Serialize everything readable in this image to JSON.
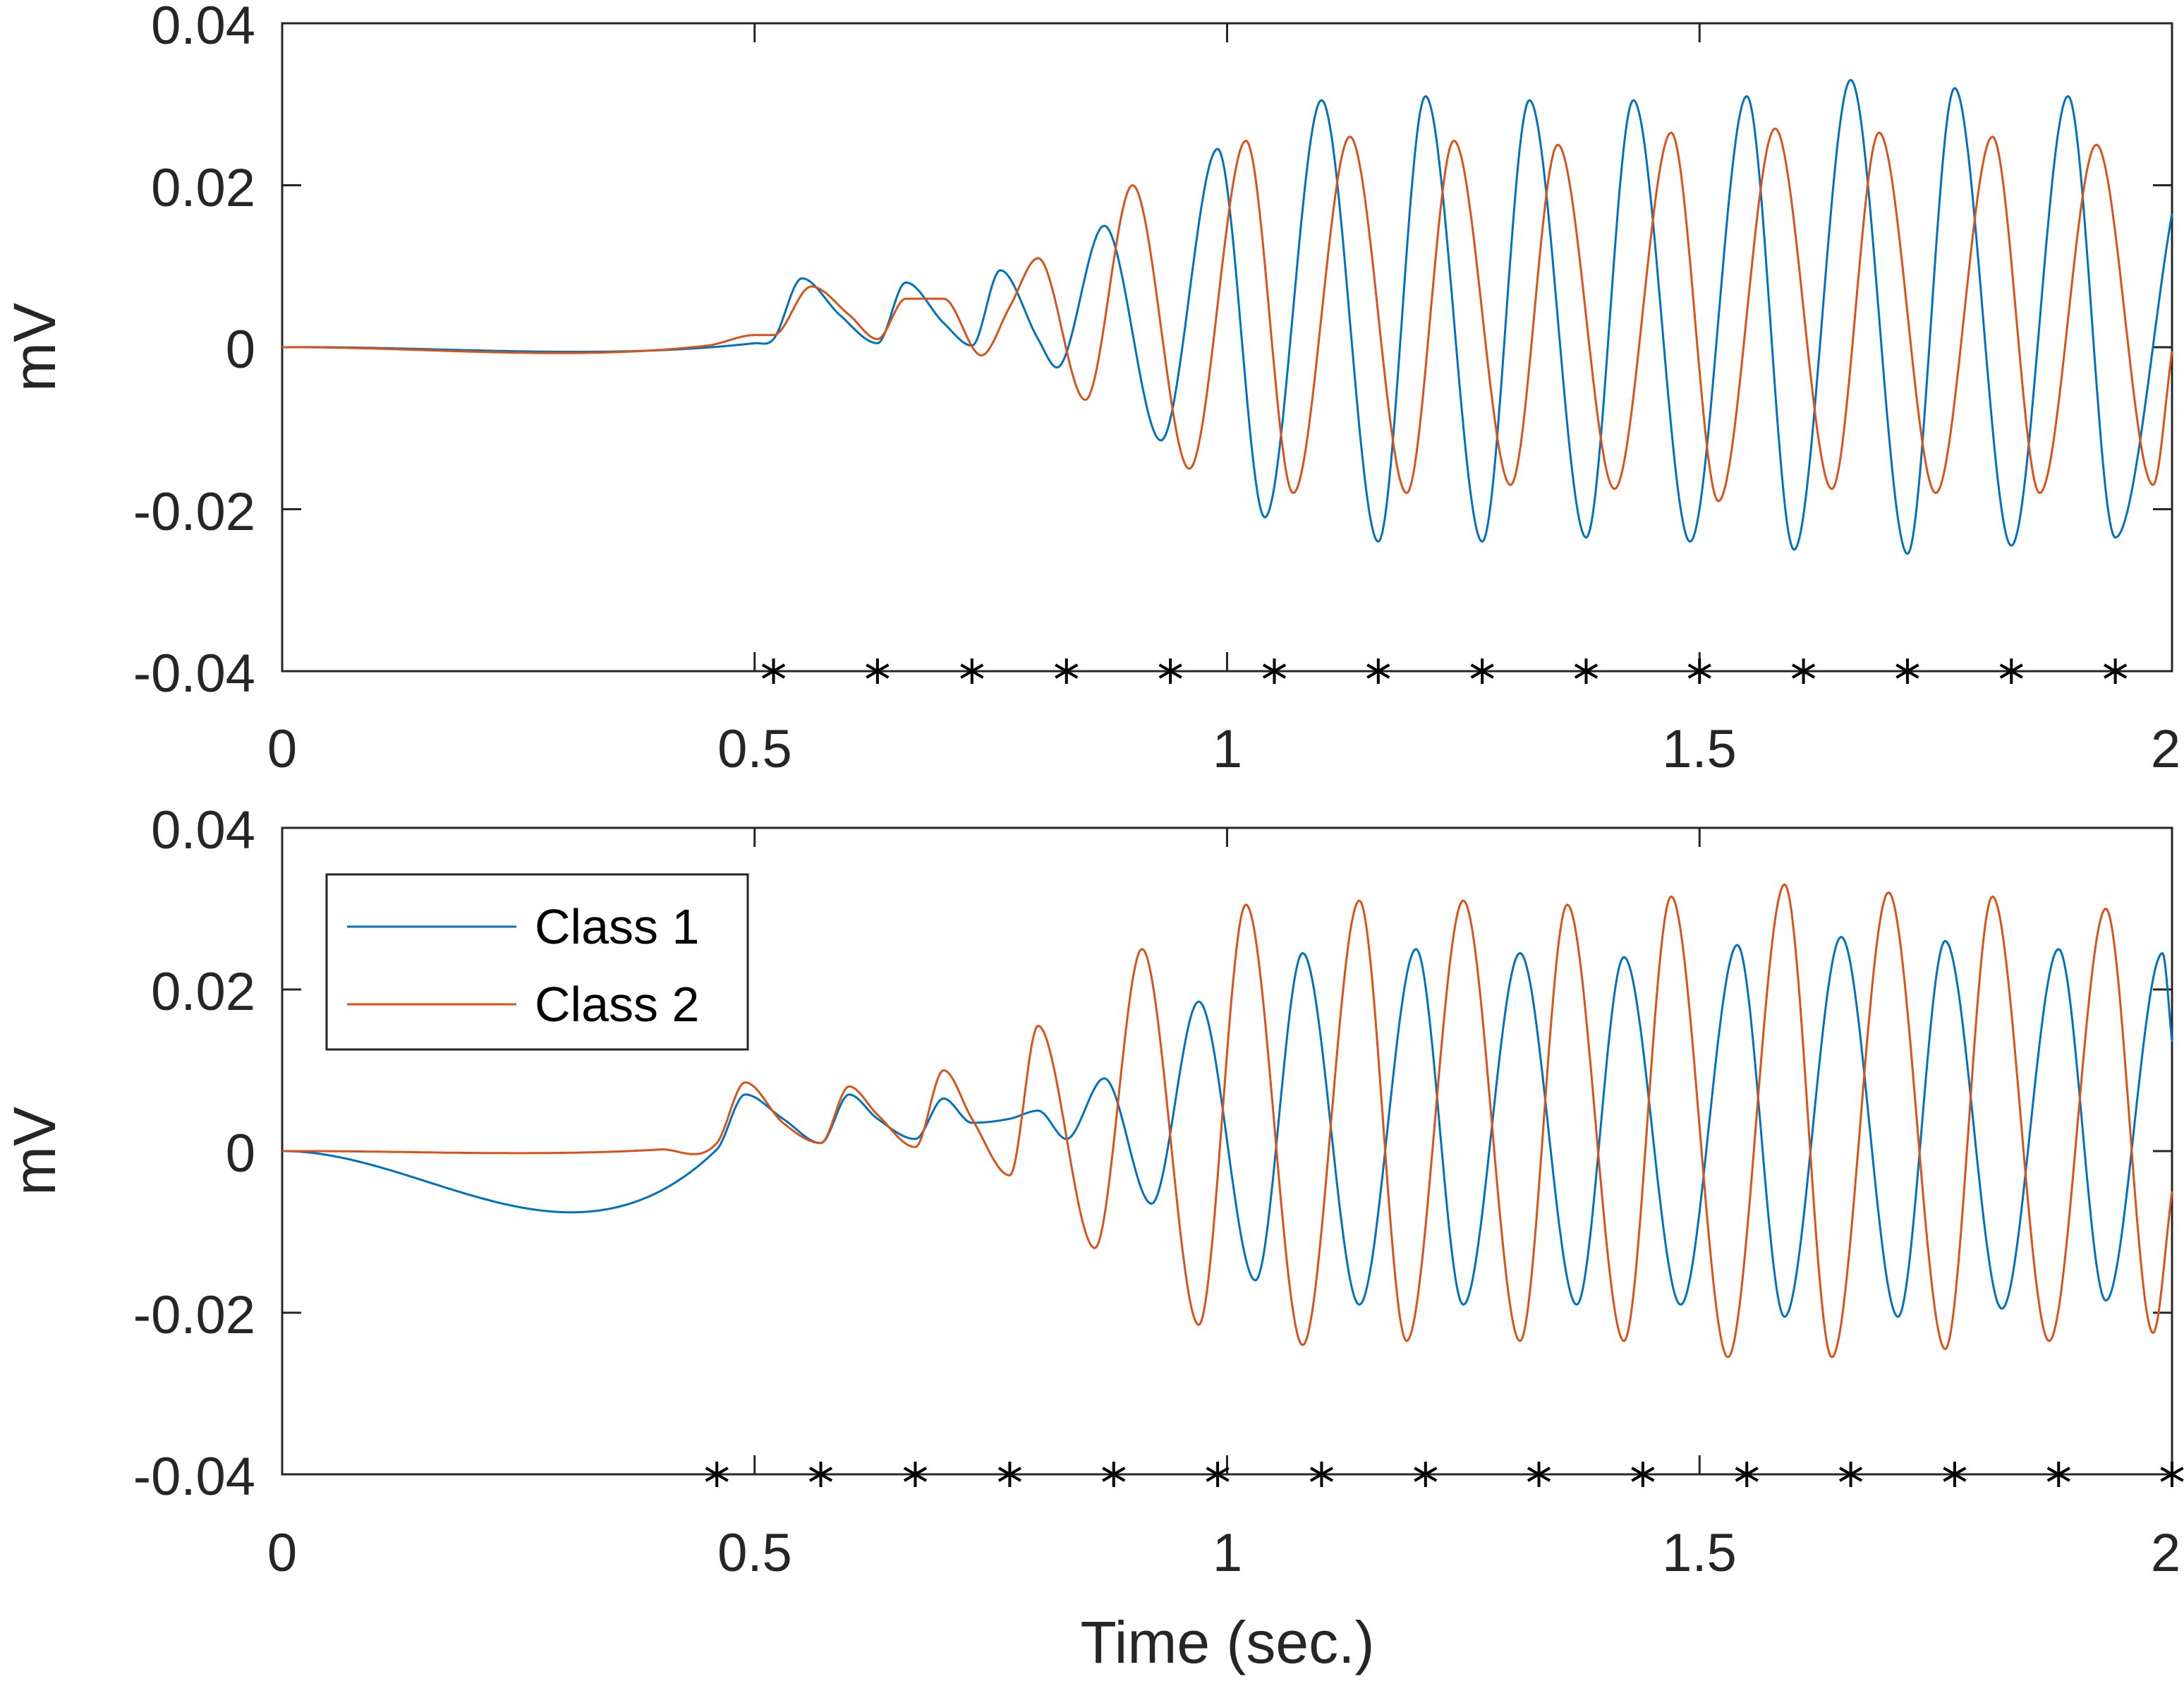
{
  "colors": {
    "class1": "#0072BD",
    "class2": "#D95319",
    "axis": "#262626",
    "marker": "#000000"
  },
  "xlabel": "Time (sec.)",
  "chart_data": [
    {
      "type": "line",
      "title": "",
      "xlabel": "",
      "ylabel": "mV",
      "xlim": [
        0,
        2
      ],
      "ylim": [
        -0.04,
        0.04
      ],
      "xticks": [
        "0",
        "0.5",
        "1",
        "1.5",
        "2"
      ],
      "yticks": [
        "-0.04",
        "-0.02",
        "0",
        "0.02",
        "0.04"
      ],
      "markers_x": [
        0.52,
        0.63,
        0.73,
        0.83,
        0.94,
        1.05,
        1.16,
        1.27,
        1.38,
        1.5,
        1.61,
        1.72,
        1.83,
        1.94
      ],
      "series": [
        {
          "name": "Class 1",
          "x": [
            0,
            0.5,
            0.52,
            0.55,
            0.59,
            0.63,
            0.66,
            0.7,
            0.73,
            0.76,
            0.8,
            0.82,
            0.87,
            0.93,
            0.99,
            1.04,
            1.1,
            1.16,
            1.21,
            1.27,
            1.32,
            1.38,
            1.43,
            1.49,
            1.55,
            1.6,
            1.66,
            1.72,
            1.77,
            1.83,
            1.89,
            1.94,
            2.0
          ],
          "values": [
            0,
            0.0005,
            0.001,
            0.0085,
            0.004,
            0.0005,
            0.008,
            0.003,
            0.0002,
            0.0095,
            0.001,
            -0.0025,
            0.015,
            -0.0115,
            0.0245,
            -0.021,
            0.0305,
            -0.024,
            0.031,
            -0.024,
            0.0305,
            -0.0235,
            0.0305,
            -0.024,
            0.031,
            -0.025,
            0.033,
            -0.0255,
            0.032,
            -0.0245,
            0.031,
            -0.0235,
            0.0165
          ]
        },
        {
          "name": "Class 2",
          "x": [
            0,
            0.45,
            0.5,
            0.52,
            0.56,
            0.6,
            0.63,
            0.66,
            0.7,
            0.74,
            0.77,
            0.8,
            0.85,
            0.9,
            0.96,
            1.02,
            1.07,
            1.13,
            1.19,
            1.24,
            1.3,
            1.35,
            1.41,
            1.47,
            1.52,
            1.58,
            1.64,
            1.69,
            1.75,
            1.81,
            1.86,
            1.92,
            1.98,
            2.0
          ],
          "values": [
            0,
            0.0002,
            0.0015,
            0.0015,
            0.0075,
            0.004,
            0.001,
            0.006,
            0.006,
            -0.001,
            0.005,
            0.011,
            -0.0065,
            0.02,
            -0.015,
            0.0255,
            -0.018,
            0.026,
            -0.018,
            0.0255,
            -0.017,
            0.025,
            -0.0175,
            0.0265,
            -0.019,
            0.027,
            -0.0175,
            0.0265,
            -0.018,
            0.026,
            -0.018,
            0.025,
            -0.017,
            -0.0005
          ]
        }
      ]
    },
    {
      "type": "line",
      "title": "",
      "xlabel": "Time (sec.)",
      "ylabel": "mV",
      "xlim": [
        0,
        2
      ],
      "ylim": [
        -0.04,
        0.04
      ],
      "xticks": [
        "0",
        "0.5",
        "1",
        "1.5",
        "2"
      ],
      "yticks": [
        "-0.04",
        "-0.02",
        "0",
        "0.02",
        "0.04"
      ],
      "legend": {
        "location": "top-left",
        "entries": [
          "Class 1",
          "Class 2"
        ]
      },
      "markers_x": [
        0.46,
        0.57,
        0.67,
        0.77,
        0.88,
        0.99,
        1.1,
        1.21,
        1.33,
        1.44,
        1.55,
        1.66,
        1.77,
        1.88,
        2.0
      ],
      "series": [
        {
          "name": "Class 1",
          "x": [
            0,
            0.46,
            0.49,
            0.53,
            0.57,
            0.6,
            0.63,
            0.67,
            0.7,
            0.73,
            0.77,
            0.8,
            0.83,
            0.87,
            0.92,
            0.97,
            1.03,
            1.08,
            1.14,
            1.2,
            1.25,
            1.31,
            1.37,
            1.42,
            1.48,
            1.54,
            1.59,
            1.65,
            1.71,
            1.76,
            1.82,
            1.88,
            1.93,
            1.99,
            2.0
          ],
          "values": [
            0,
            0.0002,
            0.007,
            0.004,
            0.001,
            0.007,
            0.004,
            0.0015,
            0.0065,
            0.0035,
            0.004,
            0.005,
            0.0015,
            0.009,
            -0.0065,
            0.0185,
            -0.016,
            0.0245,
            -0.019,
            0.025,
            -0.019,
            0.0245,
            -0.019,
            0.024,
            -0.019,
            0.0255,
            -0.0205,
            0.0265,
            -0.0205,
            0.026,
            -0.0195,
            0.025,
            -0.0185,
            0.0245,
            0.0135
          ]
        },
        {
          "name": "Class 2",
          "x": [
            0,
            0.4,
            0.46,
            0.49,
            0.53,
            0.57,
            0.6,
            0.63,
            0.67,
            0.7,
            0.73,
            0.77,
            0.8,
            0.86,
            0.91,
            0.97,
            1.02,
            1.08,
            1.14,
            1.19,
            1.25,
            1.31,
            1.36,
            1.42,
            1.47,
            1.53,
            1.59,
            1.64,
            1.7,
            1.76,
            1.81,
            1.87,
            1.93,
            1.98,
            2.0
          ],
          "values": [
            0,
            0.0002,
            0.001,
            0.0085,
            0.0035,
            0.001,
            0.008,
            0.0045,
            0.0005,
            0.01,
            0.004,
            -0.003,
            0.0155,
            -0.012,
            0.025,
            -0.0215,
            0.0305,
            -0.024,
            0.031,
            -0.0235,
            0.031,
            -0.0235,
            0.0305,
            -0.0235,
            0.0315,
            -0.0255,
            0.033,
            -0.0255,
            0.032,
            -0.0245,
            0.0315,
            -0.0235,
            0.03,
            -0.0225,
            -0.005
          ]
        }
      ]
    }
  ]
}
